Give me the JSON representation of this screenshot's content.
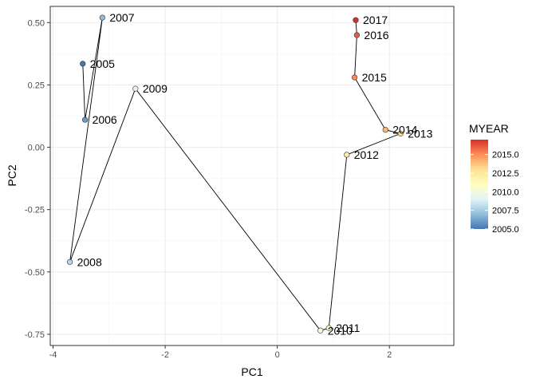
{
  "chart_data": {
    "type": "scatter",
    "title": "",
    "xlabel": "PC1",
    "ylabel": "PC2",
    "xlim": [
      -4.05,
      3.15
    ],
    "ylim": [
      -0.795,
      0.565
    ],
    "x_ticks": [
      -4,
      -2,
      0,
      2
    ],
    "x_tick_labels": [
      "-4",
      "-2",
      "0",
      "2"
    ],
    "y_ticks": [
      -0.75,
      -0.5,
      -0.25,
      0.0,
      0.25,
      0.5
    ],
    "y_tick_labels": [
      "-0.75",
      "-0.50",
      "-0.25",
      "0.00",
      "0.25",
      "0.50"
    ],
    "grid": true,
    "connected_path": true,
    "points": [
      {
        "year": 2005,
        "label": "2005",
        "x": -3.47,
        "y": 0.335
      },
      {
        "year": 2006,
        "label": "2006",
        "x": -3.43,
        "y": 0.11
      },
      {
        "year": 2007,
        "label": "2007",
        "x": -3.12,
        "y": 0.52
      },
      {
        "year": 2008,
        "label": "2008",
        "x": -3.7,
        "y": -0.46
      },
      {
        "year": 2009,
        "label": "2009",
        "x": -2.53,
        "y": 0.235
      },
      {
        "year": 2010,
        "label": "2010",
        "x": 0.77,
        "y": -0.735
      },
      {
        "year": 2011,
        "label": "2011",
        "x": 0.92,
        "y": -0.725
      },
      {
        "year": 2012,
        "label": "2012",
        "x": 1.24,
        "y": -0.03
      },
      {
        "year": 2013,
        "label": "2013",
        "x": 2.2,
        "y": 0.055
      },
      {
        "year": 2014,
        "label": "2014",
        "x": 1.93,
        "y": 0.07
      },
      {
        "year": 2015,
        "label": "2015",
        "x": 1.38,
        "y": 0.28
      },
      {
        "year": 2016,
        "label": "2016",
        "x": 1.42,
        "y": 0.45
      },
      {
        "year": 2017,
        "label": "2017",
        "x": 1.4,
        "y": 0.51
      }
    ],
    "legend": {
      "title": "MYEAR",
      "placement": "right",
      "min": 2005,
      "max": 2017,
      "breaks": [
        2005.0,
        2007.5,
        2010.0,
        2012.5,
        2015.0
      ],
      "break_labels": [
        "2005.0",
        "2007.5",
        "2010.0",
        "2012.5",
        "2015.0"
      ],
      "colors": [
        "#4575b4",
        "#91bfdb",
        "#e0f3f8",
        "#ffffbf",
        "#fee090",
        "#fc8d59",
        "#d73027"
      ]
    }
  }
}
